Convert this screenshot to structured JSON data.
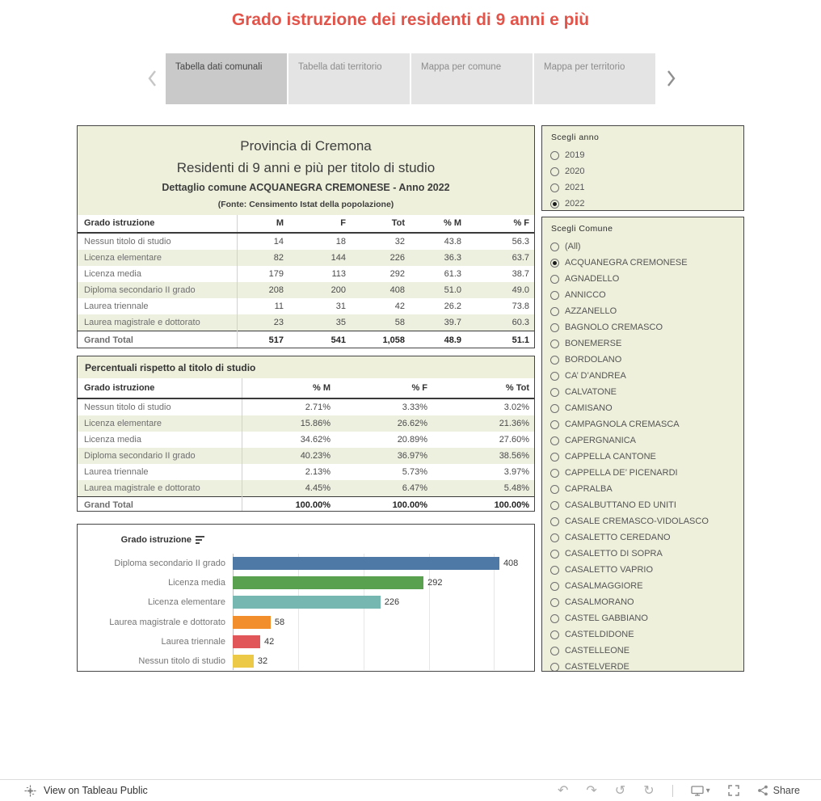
{
  "page": {
    "title": "Grado istruzione dei residenti di 9 anni e più",
    "accent_color": "#e2544a",
    "panel_bg": "#eef0dc",
    "band_bg": "#edefdf"
  },
  "tabs": {
    "items": [
      {
        "label": "Tabella dati comunali",
        "active": true
      },
      {
        "label": "Tabella dati territorio",
        "active": false
      },
      {
        "label": "Mappa per comune",
        "active": false
      },
      {
        "label": "Mappa per territorio",
        "active": false
      }
    ]
  },
  "report": {
    "header": {
      "line1": "Provincia di Cremona",
      "line2": "Residenti di 9 anni e più per titolo di studio",
      "line3": "Dettaglio comune ACQUANEGRA CREMONESE - Anno 2022",
      "line4": "(Fonte: Censimento Istat della popolazione)"
    },
    "table1": {
      "columns": [
        "Grado istruzione",
        "M",
        "F",
        "Tot",
        "% M",
        "% F"
      ],
      "rows": [
        [
          "Nessun titolo di studio",
          "14",
          "18",
          "32",
          "43.8",
          "56.3"
        ],
        [
          "Licenza elementare",
          "82",
          "144",
          "226",
          "36.3",
          "63.7"
        ],
        [
          "Licenza media",
          "179",
          "113",
          "292",
          "61.3",
          "38.7"
        ],
        [
          "Diploma secondario II grado",
          "208",
          "200",
          "408",
          "51.0",
          "49.0"
        ],
        [
          "Laurea triennale",
          "11",
          "31",
          "42",
          "26.2",
          "73.8"
        ],
        [
          "Laurea magistrale e dottorato",
          "23",
          "35",
          "58",
          "39.7",
          "60.3"
        ]
      ],
      "total": [
        "Grand Total",
        "517",
        "541",
        "1,058",
        "48.9",
        "51.1"
      ]
    },
    "table2": {
      "title": "Percentuali rispetto al titolo di studio",
      "columns": [
        "Grado istruzione",
        "% M",
        "% F",
        "% Tot"
      ],
      "rows": [
        [
          "Nessun titolo di studio",
          "2.71%",
          "3.33%",
          "3.02%"
        ],
        [
          "Licenza elementare",
          "15.86%",
          "26.62%",
          "21.36%"
        ],
        [
          "Licenza media",
          "34.62%",
          "20.89%",
          "27.60%"
        ],
        [
          "Diploma secondario II grado",
          "40.23%",
          "36.97%",
          "38.56%"
        ],
        [
          "Laurea triennale",
          "2.13%",
          "5.73%",
          "3.97%"
        ],
        [
          "Laurea magistrale e dottorato",
          "4.45%",
          "6.47%",
          "5.48%"
        ]
      ],
      "total": [
        "Grand Total",
        "100.00%",
        "100.00%",
        "100.00%"
      ]
    }
  },
  "chart_data": {
    "type": "bar",
    "orientation": "horizontal",
    "header_label": "Grado istruzione",
    "sort": "descending",
    "categories": [
      "Diploma secondario II grado",
      "Licenza media",
      "Licenza elementare",
      "Laurea magistrale e dottorato",
      "Laurea triennale",
      "Nessun titolo di studio"
    ],
    "values": [
      408,
      292,
      226,
      58,
      42,
      32
    ],
    "colors": [
      "#4e79a7",
      "#59a14f",
      "#76b7b2",
      "#f28e2b",
      "#e15759",
      "#edc948"
    ],
    "xlim": [
      0,
      460
    ],
    "gridline_step": 100,
    "value_labels": true,
    "legend": "none"
  },
  "filters": {
    "year": {
      "title": "Scegli anno",
      "options": [
        "2019",
        "2020",
        "2021",
        "2022"
      ],
      "selected": "2022"
    },
    "comune": {
      "title": "Scegli Comune",
      "options": [
        "(All)",
        "ACQUANEGRA CREMONESE",
        "AGNADELLO",
        "ANNICCO",
        "AZZANELLO",
        "BAGNOLO CREMASCO",
        "BONEMERSE",
        "BORDOLANO",
        "CA’ D’ANDREA",
        "CALVATONE",
        "CAMISANO",
        "CAMPAGNOLA CREMASCA",
        "CAPERGNANICA",
        "CAPPELLA CANTONE",
        "CAPPELLA DE’ PICENARDI",
        "CAPRALBA",
        "CASALBUTTANO ED UNITI",
        "CASALE CREMASCO-VIDOLASCO",
        "CASALETTO CEREDANO",
        "CASALETTO DI SOPRA",
        "CASALETTO VAPRIO",
        "CASALMAGGIORE",
        "CASALMORANO",
        "CASTEL GABBIANO",
        "CASTELDIDONE",
        "CASTELLEONE",
        "CASTELVERDE"
      ],
      "selected": "ACQUANEGRA CREMONESE"
    }
  },
  "footer": {
    "view_label": "View on Tableau Public",
    "share_label": "Share",
    "icons": {
      "undo": "↶",
      "redo": "↷",
      "revert": "↺",
      "refresh": "↻",
      "caret": "▾"
    }
  }
}
